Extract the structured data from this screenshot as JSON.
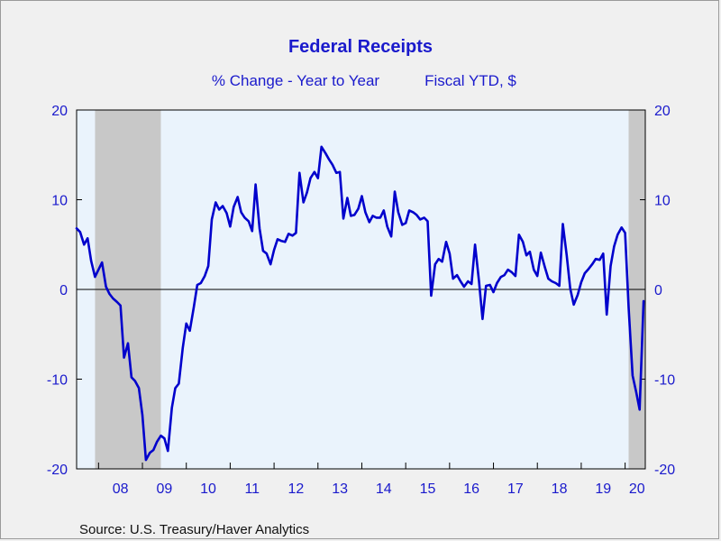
{
  "chart_data": {
    "type": "line",
    "title": "Federal Receipts",
    "subtitle_left": "% Change - Year to Year",
    "subtitle_right": "Fiscal YTD, $",
    "source": "Source:  U.S. Treasury/Haver Analytics",
    "ylim": [
      -20,
      20
    ],
    "yticks": [
      20,
      10,
      0,
      -10,
      -20
    ],
    "xlim": [
      2007.5,
      2020.46
    ],
    "xtick_labels": [
      {
        "label": "08",
        "x": 2008.5
      },
      {
        "label": "09",
        "x": 2009.5
      },
      {
        "label": "10",
        "x": 2010.5
      },
      {
        "label": "11",
        "x": 2011.5
      },
      {
        "label": "12",
        "x": 2012.5
      },
      {
        "label": "13",
        "x": 2013.5
      },
      {
        "label": "14",
        "x": 2014.5
      },
      {
        "label": "15",
        "x": 2015.5
      },
      {
        "label": "16",
        "x": 2016.5
      },
      {
        "label": "17",
        "x": 2017.5
      },
      {
        "label": "18",
        "x": 2018.5
      },
      {
        "label": "19",
        "x": 2019.5
      },
      {
        "label": "20",
        "x": 2020.27
      }
    ],
    "recessions": [
      [
        2007.92,
        2009.42
      ],
      [
        2020.08,
        2020.46
      ]
    ],
    "grid": false,
    "zero_line": true,
    "colors": {
      "line": "#0000cc",
      "plot_bg": "#eaf3fc",
      "recession": "#c8c8c8",
      "text": "#1a1acc"
    },
    "series": [
      {
        "values": [
          [
            2007.5,
            6.8
          ],
          [
            2007.58,
            6.4
          ],
          [
            2007.67,
            5.0
          ],
          [
            2007.75,
            5.7
          ],
          [
            2007.83,
            3.2
          ],
          [
            2007.92,
            1.4
          ],
          [
            2008.0,
            2.2
          ],
          [
            2008.08,
            3.0
          ],
          [
            2008.17,
            0.3
          ],
          [
            2008.25,
            -0.5
          ],
          [
            2008.33,
            -1.0
          ],
          [
            2008.42,
            -1.4
          ],
          [
            2008.5,
            -1.8
          ],
          [
            2008.58,
            -7.6
          ],
          [
            2008.67,
            -6.0
          ],
          [
            2008.75,
            -9.8
          ],
          [
            2008.83,
            -10.2
          ],
          [
            2008.92,
            -11.0
          ],
          [
            2009.0,
            -14.0
          ],
          [
            2009.08,
            -19.0
          ],
          [
            2009.17,
            -18.2
          ],
          [
            2009.25,
            -17.9
          ],
          [
            2009.33,
            -17.0
          ],
          [
            2009.42,
            -16.3
          ],
          [
            2009.5,
            -16.6
          ],
          [
            2009.58,
            -18.0
          ],
          [
            2009.67,
            -13.2
          ],
          [
            2009.75,
            -11.0
          ],
          [
            2009.83,
            -10.5
          ],
          [
            2009.92,
            -6.5
          ],
          [
            2010.0,
            -3.8
          ],
          [
            2010.08,
            -4.6
          ],
          [
            2010.17,
            -2.0
          ],
          [
            2010.25,
            0.5
          ],
          [
            2010.33,
            0.7
          ],
          [
            2010.42,
            1.5
          ],
          [
            2010.5,
            2.6
          ],
          [
            2010.58,
            7.8
          ],
          [
            2010.67,
            9.7
          ],
          [
            2010.75,
            8.9
          ],
          [
            2010.83,
            9.3
          ],
          [
            2010.92,
            8.5
          ],
          [
            2011.0,
            7.0
          ],
          [
            2011.08,
            9.2
          ],
          [
            2011.17,
            10.3
          ],
          [
            2011.25,
            8.6
          ],
          [
            2011.33,
            8.0
          ],
          [
            2011.42,
            7.6
          ],
          [
            2011.5,
            6.5
          ],
          [
            2011.58,
            11.7
          ],
          [
            2011.67,
            6.8
          ],
          [
            2011.75,
            4.3
          ],
          [
            2011.83,
            4.0
          ],
          [
            2011.92,
            2.8
          ],
          [
            2012.0,
            4.4
          ],
          [
            2012.08,
            5.6
          ],
          [
            2012.17,
            5.4
          ],
          [
            2012.25,
            5.3
          ],
          [
            2012.33,
            6.2
          ],
          [
            2012.42,
            6.0
          ],
          [
            2012.5,
            6.3
          ],
          [
            2012.58,
            13.0
          ],
          [
            2012.67,
            9.7
          ],
          [
            2012.75,
            10.8
          ],
          [
            2012.83,
            12.4
          ],
          [
            2012.92,
            13.1
          ],
          [
            2013.0,
            12.4
          ],
          [
            2013.08,
            15.9
          ],
          [
            2013.17,
            15.2
          ],
          [
            2013.25,
            14.5
          ],
          [
            2013.33,
            13.9
          ],
          [
            2013.42,
            13.0
          ],
          [
            2013.5,
            13.1
          ],
          [
            2013.58,
            7.9
          ],
          [
            2013.67,
            10.2
          ],
          [
            2013.75,
            8.2
          ],
          [
            2013.83,
            8.3
          ],
          [
            2013.92,
            9.0
          ],
          [
            2014.0,
            10.4
          ],
          [
            2014.08,
            8.6
          ],
          [
            2014.17,
            7.5
          ],
          [
            2014.25,
            8.2
          ],
          [
            2014.33,
            8.0
          ],
          [
            2014.42,
            8.0
          ],
          [
            2014.5,
            8.8
          ],
          [
            2014.58,
            7.0
          ],
          [
            2014.67,
            5.9
          ],
          [
            2014.75,
            10.9
          ],
          [
            2014.83,
            8.6
          ],
          [
            2014.92,
            7.2
          ],
          [
            2015.0,
            7.4
          ],
          [
            2015.08,
            8.8
          ],
          [
            2015.17,
            8.6
          ],
          [
            2015.25,
            8.3
          ],
          [
            2015.33,
            7.8
          ],
          [
            2015.42,
            8.0
          ],
          [
            2015.5,
            7.6
          ],
          [
            2015.58,
            -0.7
          ],
          [
            2015.67,
            2.8
          ],
          [
            2015.75,
            3.4
          ],
          [
            2015.83,
            3.1
          ],
          [
            2015.92,
            5.3
          ],
          [
            2016.0,
            4.0
          ],
          [
            2016.08,
            1.2
          ],
          [
            2016.17,
            1.6
          ],
          [
            2016.25,
            0.9
          ],
          [
            2016.33,
            0.3
          ],
          [
            2016.42,
            0.9
          ],
          [
            2016.5,
            0.6
          ],
          [
            2016.58,
            5.0
          ],
          [
            2016.67,
            0.9
          ],
          [
            2016.75,
            -3.3
          ],
          [
            2016.83,
            0.4
          ],
          [
            2016.92,
            0.5
          ],
          [
            2017.0,
            -0.3
          ],
          [
            2017.08,
            0.7
          ],
          [
            2017.17,
            1.4
          ],
          [
            2017.25,
            1.6
          ],
          [
            2017.33,
            2.2
          ],
          [
            2017.42,
            1.9
          ],
          [
            2017.5,
            1.5
          ],
          [
            2017.58,
            6.1
          ],
          [
            2017.67,
            5.3
          ],
          [
            2017.75,
            3.8
          ],
          [
            2017.83,
            4.2
          ],
          [
            2017.92,
            2.2
          ],
          [
            2018.0,
            1.5
          ],
          [
            2018.08,
            4.1
          ],
          [
            2018.17,
            2.5
          ],
          [
            2018.25,
            1.2
          ],
          [
            2018.33,
            0.9
          ],
          [
            2018.42,
            0.7
          ],
          [
            2018.5,
            0.4
          ],
          [
            2018.58,
            7.3
          ],
          [
            2018.67,
            3.8
          ],
          [
            2018.75,
            0.1
          ],
          [
            2018.83,
            -1.7
          ],
          [
            2018.92,
            -0.6
          ],
          [
            2019.0,
            0.8
          ],
          [
            2019.08,
            1.8
          ],
          [
            2019.17,
            2.3
          ],
          [
            2019.25,
            2.8
          ],
          [
            2019.33,
            3.4
          ],
          [
            2019.42,
            3.3
          ],
          [
            2019.5,
            4.0
          ],
          [
            2019.58,
            -2.8
          ],
          [
            2019.67,
            2.6
          ],
          [
            2019.75,
            4.8
          ],
          [
            2019.83,
            6.1
          ],
          [
            2019.92,
            6.9
          ],
          [
            2020.0,
            6.3
          ],
          [
            2020.08,
            -2.0
          ],
          [
            2020.17,
            -9.6
          ],
          [
            2020.25,
            -11.4
          ],
          [
            2020.33,
            -13.4
          ],
          [
            2020.42,
            -1.3
          ]
        ]
      }
    ]
  }
}
